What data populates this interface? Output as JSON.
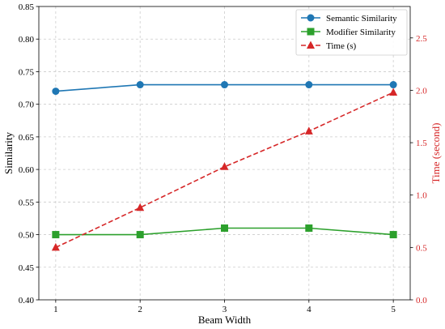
{
  "chart_data": {
    "type": "line",
    "x": [
      1,
      2,
      3,
      4,
      5
    ],
    "xticks": [
      "1",
      "2",
      "3",
      "4",
      "5"
    ],
    "xlim": [
      0.8,
      5.2
    ],
    "xlabel": "Beam Width",
    "ylabel": "Similarity",
    "ylim": [
      0.4,
      0.85
    ],
    "yticks": [
      "0.40",
      "0.45",
      "0.50",
      "0.55",
      "0.60",
      "0.65",
      "0.70",
      "0.75",
      "0.80",
      "0.85"
    ],
    "y2label": "Time (second)",
    "y2lim": [
      0.0,
      2.8
    ],
    "y2ticks": [
      "0.0",
      "0.5",
      "1.0",
      "1.5",
      "2.0",
      "2.5"
    ],
    "y2color": "#d62728",
    "grid": true,
    "legend_position": "top-right",
    "series": [
      {
        "name": "Semantic Similarity",
        "axis": "left",
        "values": [
          0.72,
          0.73,
          0.73,
          0.73,
          0.73
        ],
        "color": "#1f77b4",
        "marker": "circle",
        "line": "solid"
      },
      {
        "name": "Modifier Similarity",
        "axis": "left",
        "values": [
          0.5,
          0.5,
          0.51,
          0.51,
          0.5
        ],
        "color": "#2ca02c",
        "marker": "square",
        "line": "solid"
      },
      {
        "name": "Time (s)",
        "axis": "right",
        "values": [
          0.5,
          0.88,
          1.27,
          1.61,
          1.98
        ],
        "color": "#d62728",
        "marker": "triangle",
        "line": "dashed"
      }
    ]
  }
}
